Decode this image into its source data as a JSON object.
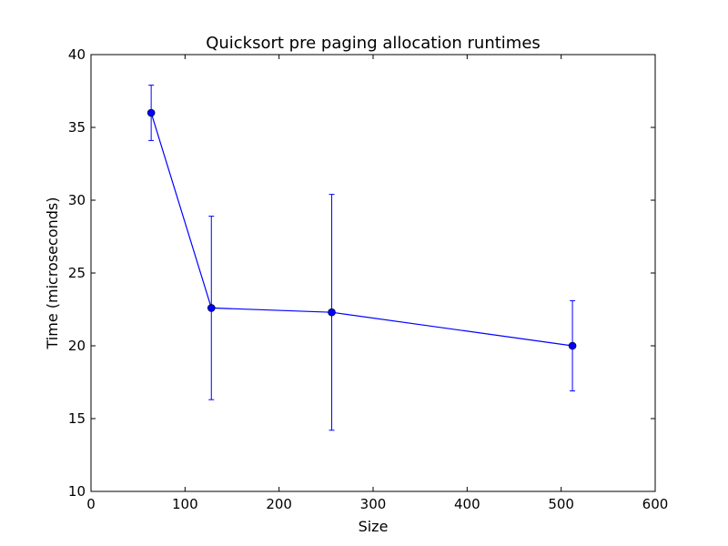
{
  "chart_data": {
    "type": "line",
    "title": "Quicksort pre paging allocation runtimes",
    "xlabel": "Size",
    "ylabel": "Time (microseconds)",
    "xlim": [
      0,
      600
    ],
    "ylim": [
      10,
      40
    ],
    "xticks": [
      0,
      100,
      200,
      300,
      400,
      500,
      600
    ],
    "yticks": [
      10,
      15,
      20,
      25,
      30,
      35,
      40
    ],
    "grid": false,
    "legend": "none",
    "series": [
      {
        "color": "#0000ff",
        "marker": "circle",
        "x": [
          64,
          128,
          256,
          512
        ],
        "y": [
          36.0,
          22.6,
          22.3,
          20.0
        ],
        "error": [
          1.9,
          6.3,
          8.1,
          3.1
        ]
      }
    ]
  }
}
